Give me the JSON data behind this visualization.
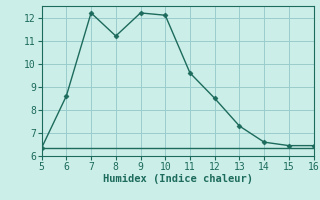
{
  "x": [
    5,
    6,
    7,
    8,
    9,
    10,
    11,
    12,
    13,
    14,
    15,
    16
  ],
  "y": [
    6.35,
    8.6,
    12.2,
    11.2,
    12.2,
    12.1,
    9.6,
    8.5,
    7.3,
    6.6,
    6.45,
    6.45
  ],
  "y_flat": [
    6.35,
    6.35,
    6.35,
    6.35,
    6.35,
    6.35,
    6.35,
    6.35,
    6.35,
    6.35,
    6.35,
    6.35
  ],
  "line_color": "#1c6b5c",
  "bg_color": "#cceee8",
  "grid_color": "#99cccc",
  "xlabel": "Humidex (Indice chaleur)",
  "xlim": [
    5,
    16
  ],
  "ylim": [
    6,
    12.5
  ],
  "xticks": [
    5,
    6,
    7,
    8,
    9,
    10,
    11,
    12,
    13,
    14,
    15,
    16
  ],
  "yticks": [
    6,
    7,
    8,
    9,
    10,
    11,
    12
  ],
  "marker": "D",
  "markersize": 2.5,
  "linewidth": 1.0,
  "xlabel_fontsize": 7.5,
  "tick_fontsize": 7
}
